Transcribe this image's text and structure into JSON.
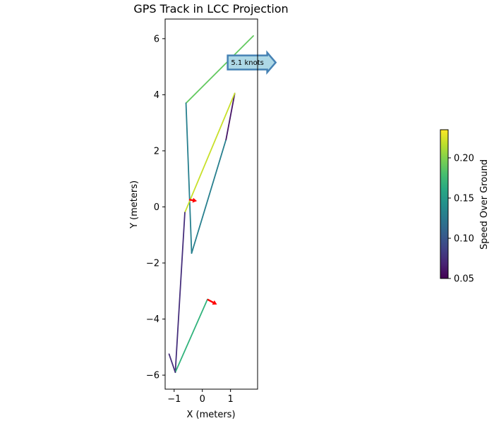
{
  "chart_data": {
    "type": "line",
    "title": "GPS Track in LCC Projection",
    "xlabel": "X (meters)",
    "ylabel": "Y (meters)",
    "xlim": [
      -1.32,
      1.96
    ],
    "ylim": [
      -6.5,
      6.7
    ],
    "x_ticks": [
      -1,
      0,
      1
    ],
    "y_ticks": [
      -6,
      -4,
      -2,
      0,
      2,
      4,
      6
    ],
    "grid": false,
    "colorbar": {
      "label": "Speed Over Ground",
      "range": [
        0.05,
        0.235
      ],
      "ticks": [
        0.05,
        0.1,
        0.15,
        0.2
      ],
      "tick_labels": [
        "0.05",
        "0.10",
        "0.15",
        "0.20"
      ],
      "colormap": "viridis"
    },
    "segments": [
      {
        "x": [
          1.81,
          -0.58
        ],
        "y": [
          6.1,
          3.7
        ],
        "speed": 0.19
      },
      {
        "x": [
          -0.58,
          -0.38
        ],
        "y": [
          3.7,
          -1.65
        ],
        "speed": 0.13
      },
      {
        "x": [
          -0.38,
          0.84
        ],
        "y": [
          -1.65,
          2.4
        ],
        "speed": 0.13
      },
      {
        "x": [
          0.84,
          1.15
        ],
        "y": [
          2.4,
          4.05
        ],
        "speed": 0.06
      },
      {
        "x": [
          1.15,
          -0.62
        ],
        "y": [
          4.05,
          -0.2
        ],
        "speed": 0.22
      },
      {
        "x": [
          -0.62,
          -0.96
        ],
        "y": [
          -0.2,
          -5.9
        ],
        "speed": 0.075
      },
      {
        "x": [
          -0.96,
          0.18
        ],
        "y": [
          -5.9,
          -3.3
        ],
        "speed": 0.17
      },
      {
        "x": [
          -0.96,
          -1.18
        ],
        "y": [
          -5.9,
          -5.25
        ],
        "speed": 0.075
      }
    ],
    "direction_arrows": [
      {
        "x": -0.47,
        "y": 0.26,
        "dx": 0.28,
        "dy": -0.05
      },
      {
        "x": 0.18,
        "y": -3.3,
        "dx": 0.34,
        "dy": -0.18
      }
    ],
    "annotation": {
      "text": "5.1 knots",
      "x": 1.6,
      "y": 5.15
    }
  },
  "colors": {
    "arrow": "#ff0000",
    "annotation_fill": "#add8e6",
    "annotation_edge": "#4682b4"
  }
}
